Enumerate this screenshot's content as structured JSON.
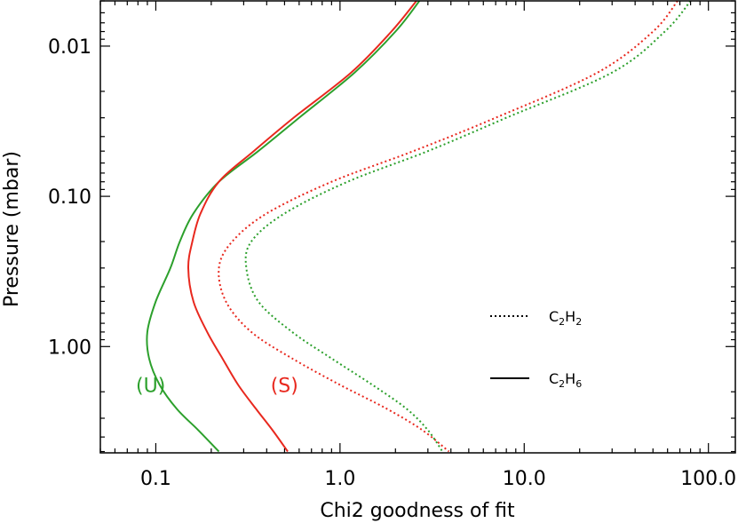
{
  "chart_data": {
    "type": "line",
    "title": "",
    "xlabel": "Chi2 goodness of fit",
    "ylabel": "Pressure (mbar)",
    "xscale": "log",
    "yscale": "log",
    "yinverted": true,
    "xlim": [
      0.05,
      140
    ],
    "ylim": [
      0.005,
      5.1
    ],
    "x_ticks": [
      0.1,
      1.0,
      10.0,
      100.0
    ],
    "x_tick_labels": [
      "0.1",
      "1.0",
      "10.0",
      "100.0"
    ],
    "y_ticks": [
      0.01,
      0.1,
      1.0
    ],
    "y_tick_labels": [
      "0.01",
      "0.10",
      "1.00"
    ],
    "legend": {
      "position": "middle-right",
      "entries": [
        {
          "label_main": "C",
          "sub1": "2",
          "label_mid": "H",
          "sub2": "2",
          "style": "dotted"
        },
        {
          "label_main": "C",
          "sub1": "2",
          "label_mid": "H",
          "sub2": "6",
          "style": "solid"
        }
      ]
    },
    "annotations": [
      {
        "text": "(U)",
        "color": "#2ca02c",
        "x": 0.078,
        "y": 1.8
      },
      {
        "text": "(S)",
        "color": "#e8281e",
        "x": 0.42,
        "y": 1.8
      }
    ],
    "series": [
      {
        "name": "C2H6 (U)",
        "color": "#2ca02c",
        "style": "solid",
        "points": [
          [
            2.7,
            0.005
          ],
          [
            2.0,
            0.008
          ],
          [
            1.2,
            0.015
          ],
          [
            0.6,
            0.03
          ],
          [
            0.36,
            0.05
          ],
          [
            0.22,
            0.08
          ],
          [
            0.16,
            0.13
          ],
          [
            0.135,
            0.2
          ],
          [
            0.12,
            0.3
          ],
          [
            0.1,
            0.5
          ],
          [
            0.09,
            0.8
          ],
          [
            0.092,
            1.2
          ],
          [
            0.105,
            1.8
          ],
          [
            0.13,
            2.6
          ],
          [
            0.17,
            3.6
          ],
          [
            0.22,
            5.0
          ]
        ]
      },
      {
        "name": "C2H6 (S)",
        "color": "#e8281e",
        "style": "solid",
        "points": [
          [
            2.6,
            0.005
          ],
          [
            1.9,
            0.008
          ],
          [
            1.15,
            0.015
          ],
          [
            0.56,
            0.03
          ],
          [
            0.34,
            0.05
          ],
          [
            0.22,
            0.08
          ],
          [
            0.175,
            0.13
          ],
          [
            0.158,
            0.2
          ],
          [
            0.15,
            0.3
          ],
          [
            0.16,
            0.5
          ],
          [
            0.19,
            0.8
          ],
          [
            0.23,
            1.2
          ],
          [
            0.28,
            1.8
          ],
          [
            0.35,
            2.6
          ],
          [
            0.43,
            3.6
          ],
          [
            0.52,
            5.0
          ]
        ]
      },
      {
        "name": "C2H2 (S)",
        "color": "#e8281e",
        "style": "dotted",
        "points": [
          [
            68,
            0.005
          ],
          [
            50,
            0.008
          ],
          [
            25,
            0.015
          ],
          [
            7,
            0.03
          ],
          [
            2.5,
            0.05
          ],
          [
            0.9,
            0.08
          ],
          [
            0.4,
            0.13
          ],
          [
            0.26,
            0.2
          ],
          [
            0.22,
            0.3
          ],
          [
            0.24,
            0.5
          ],
          [
            0.33,
            0.8
          ],
          [
            0.55,
            1.2
          ],
          [
            1.0,
            1.8
          ],
          [
            1.8,
            2.6
          ],
          [
            2.8,
            3.6
          ],
          [
            3.9,
            5.0
          ]
        ]
      },
      {
        "name": "C2H2 (U)",
        "color": "#2ca02c",
        "style": "dotted",
        "points": [
          [
            80,
            0.005
          ],
          [
            58,
            0.008
          ],
          [
            30,
            0.015
          ],
          [
            8,
            0.03
          ],
          [
            3.0,
            0.05
          ],
          [
            1.1,
            0.08
          ],
          [
            0.5,
            0.13
          ],
          [
            0.33,
            0.2
          ],
          [
            0.31,
            0.3
          ],
          [
            0.36,
            0.5
          ],
          [
            0.55,
            0.8
          ],
          [
            0.9,
            1.2
          ],
          [
            1.5,
            1.8
          ],
          [
            2.3,
            2.6
          ],
          [
            3.0,
            3.6
          ],
          [
            3.6,
            5.0
          ]
        ]
      }
    ]
  }
}
